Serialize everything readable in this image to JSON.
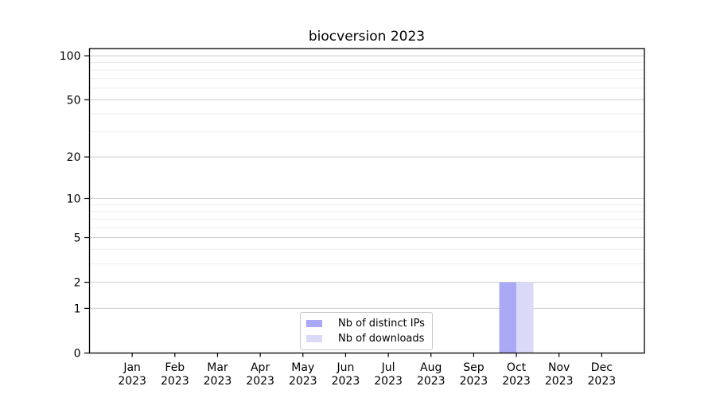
{
  "chart_data": {
    "type": "bar",
    "title": "biocversion 2023",
    "categories": [
      "Jan 2023",
      "Feb 2023",
      "Mar 2023",
      "Apr 2023",
      "May 2023",
      "Jun 2023",
      "Jul 2023",
      "Aug 2023",
      "Sep 2023",
      "Oct 2023",
      "Nov 2023",
      "Dec 2023"
    ],
    "series": [
      {
        "name": "Nb of distinct IPs",
        "color": "#a9a9f5",
        "values": [
          0,
          0,
          0,
          0,
          0,
          0,
          0,
          0,
          0,
          2,
          0,
          0
        ]
      },
      {
        "name": "Nb of downloads",
        "color": "#dadaf8",
        "values": [
          0,
          0,
          0,
          0,
          0,
          0,
          0,
          0,
          0,
          2,
          0,
          0
        ]
      }
    ],
    "xlabel": "",
    "ylabel": "",
    "yscale": "log1p",
    "yticks": [
      0,
      1,
      2,
      5,
      10,
      20,
      50,
      100
    ],
    "minor_yticks": [
      3,
      4,
      6,
      7,
      8,
      9,
      30,
      40,
      60,
      70,
      80,
      90
    ],
    "ylim": [
      0,
      112
    ],
    "xlim": [
      -1,
      12
    ],
    "grid": "horizontal",
    "legend_position": "lower center"
  },
  "colors": {
    "spine": "#000000",
    "major_grid": "#cccccc",
    "minor_grid": "#ededed",
    "tick_text": "#000000",
    "legend_border": "#c9c9c9",
    "background": "#ffffff"
  }
}
